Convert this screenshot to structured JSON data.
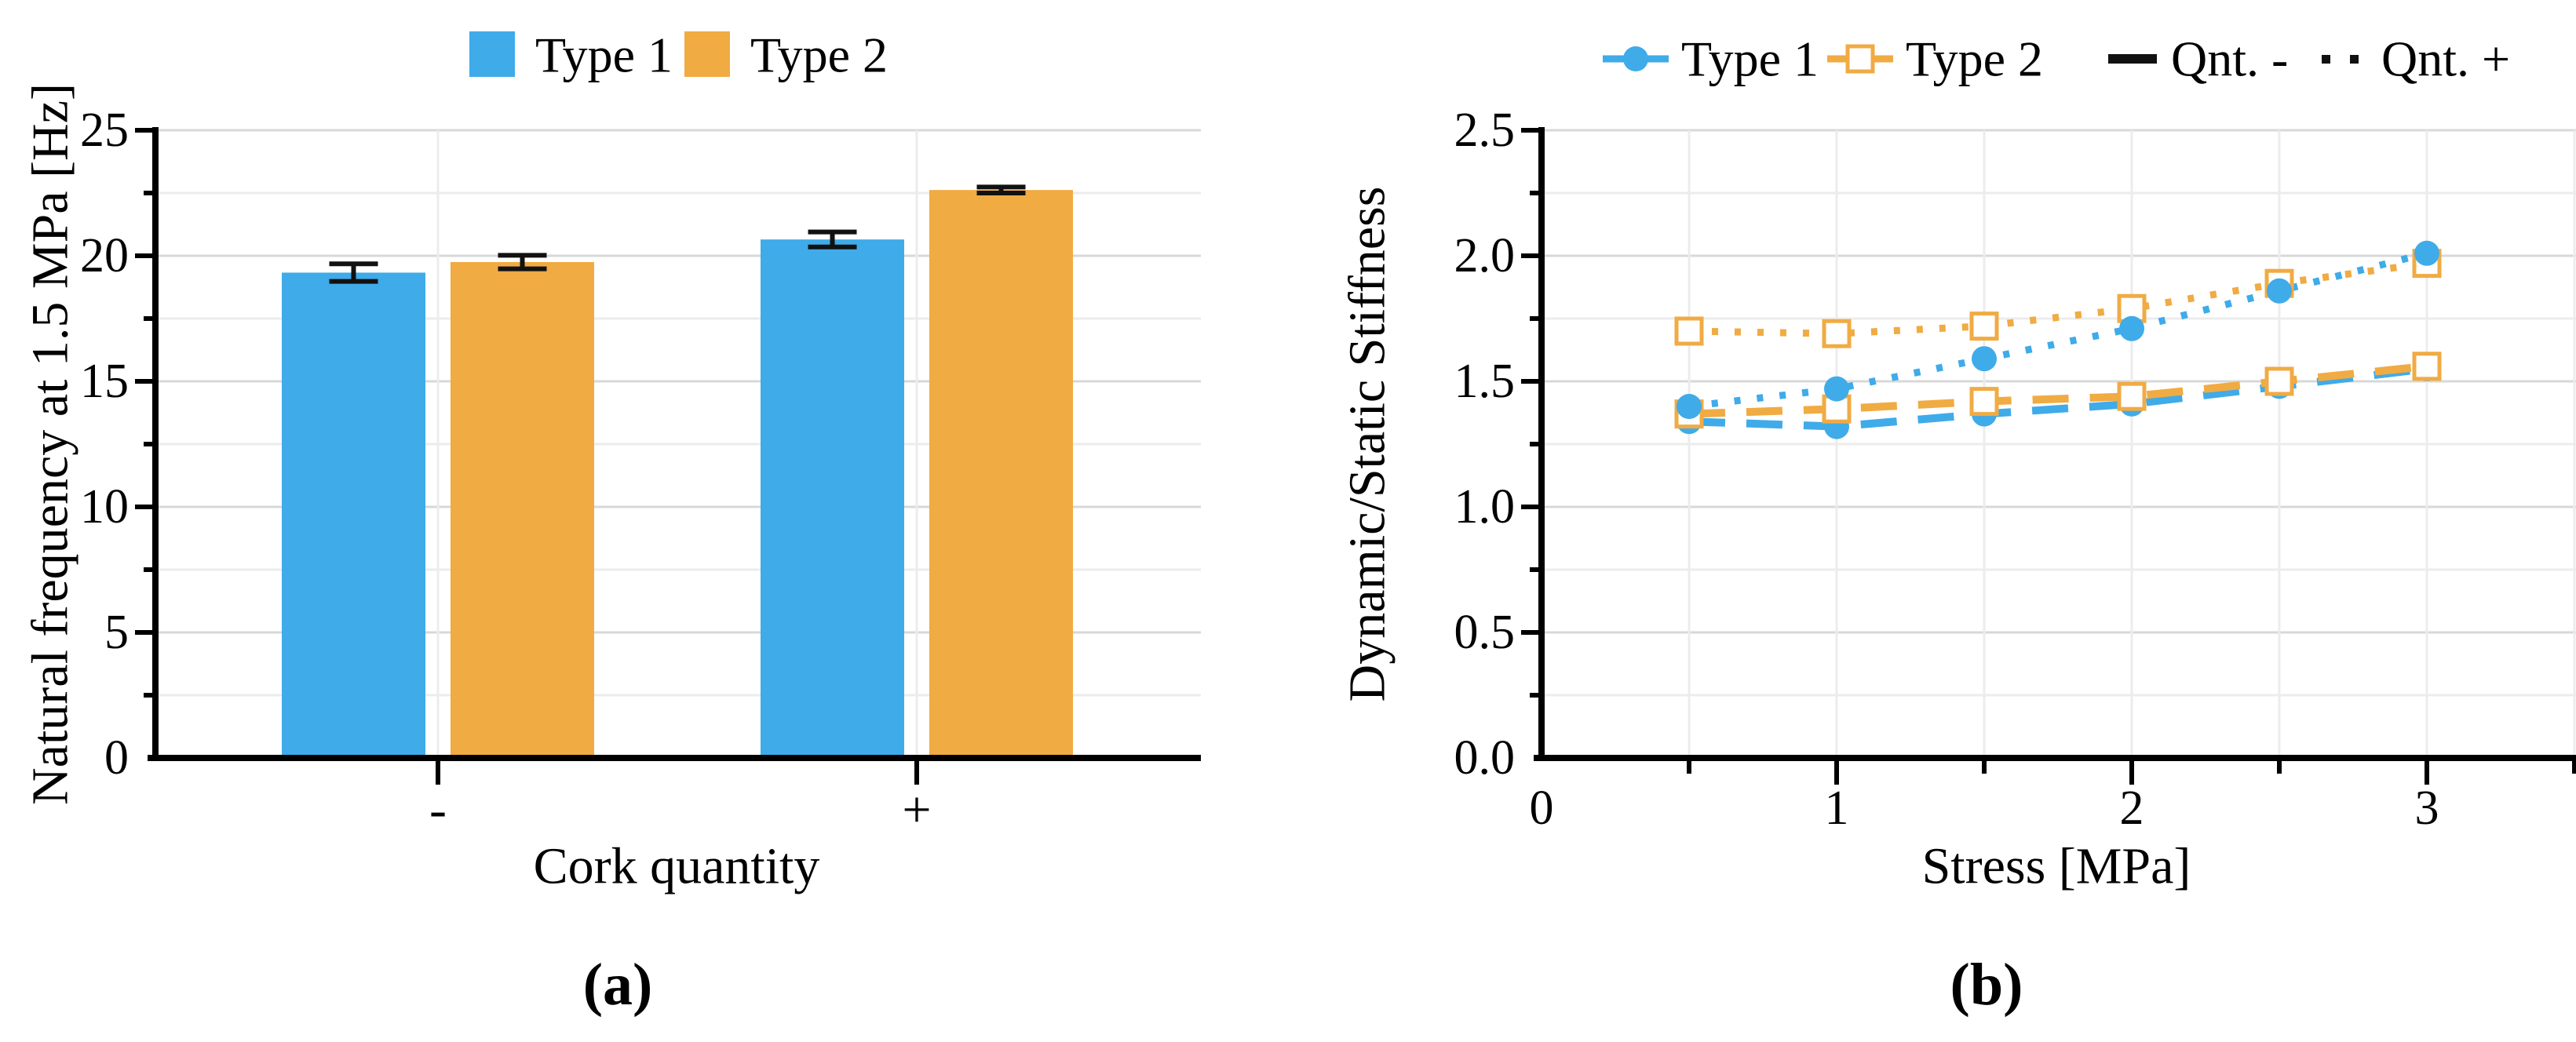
{
  "figure": {
    "description": "Two-panel figure: (a) grouped bar chart of natural frequency vs cork quantity, (b) line chart of dynamic/static stiffness vs stress",
    "background": "#ffffff"
  },
  "colors": {
    "type1": "#3FABE9",
    "type2": "#F0AB43",
    "black": "#111111",
    "axis": "#000000",
    "error_bar": "#111111",
    "grid_major": "#d8d8d8",
    "grid_minor": "#ececec",
    "marker_fill_open": "#ffffff"
  },
  "chart_data": [
    {
      "id": "bar-chart-a",
      "type": "bar",
      "caption": "(a)",
      "xlabel": "Cork quantity",
      "ylabel": "Natural frequency at 1.5 MPa [Hz]",
      "categories": [
        "-",
        "+"
      ],
      "yticks": [
        0,
        5,
        10,
        15,
        20,
        25
      ],
      "ylim": [
        0,
        25
      ],
      "grid_step": 2.5,
      "legend_position": "top-center",
      "legend": [
        {
          "label": "Type 1",
          "color_key": "type1"
        },
        {
          "label": "Type 2",
          "color_key": "type2"
        }
      ],
      "series": [
        {
          "name": "Type 1",
          "color_key": "type1",
          "values": [
            19.33,
            20.65
          ],
          "errors": [
            0.35,
            0.3
          ]
        },
        {
          "name": "Type 2",
          "color_key": "type2",
          "values": [
            19.75,
            22.62
          ],
          "errors": [
            0.27,
            0.12
          ]
        }
      ]
    },
    {
      "id": "line-chart-b",
      "type": "line",
      "caption": "(b)",
      "xlabel": "Stress [MPa]",
      "ylabel": "Dynamic/Static Stiffness",
      "x": [
        0.5,
        1,
        1.5,
        2,
        2.5,
        3
      ],
      "xticks": [
        0,
        1,
        2,
        3
      ],
      "xlim": [
        0,
        3.5
      ],
      "yticks": [
        "0.0",
        "0.5",
        "1.0",
        "1.5",
        "2.0",
        "2.5"
      ],
      "ylim": [
        0,
        2.5
      ],
      "grid_step_x": 0.5,
      "grid_step_y": 0.25,
      "legend_position": "top-center",
      "legend": [
        {
          "label": "Type 1",
          "symbol": "circle-line",
          "color_key": "type1"
        },
        {
          "label": "Type 2",
          "symbol": "square-line",
          "color_key": "type2"
        },
        {
          "label": "Qnt. -",
          "symbol": "dash",
          "color_key": "black"
        },
        {
          "label": "Qnt. +",
          "symbol": "dots",
          "color_key": "black"
        }
      ],
      "series": [
        {
          "name": "Type 1 Qnt. -",
          "color_key": "type1",
          "marker": "circle",
          "line_style": "dashed",
          "values": [
            1.34,
            1.32,
            1.37,
            1.41,
            1.48,
            1.55
          ]
        },
        {
          "name": "Type 2 Qnt. -",
          "color_key": "type2",
          "marker": "square",
          "line_style": "dashed",
          "values": [
            1.37,
            1.39,
            1.42,
            1.44,
            1.5,
            1.56
          ]
        },
        {
          "name": "Type 2 Qnt. +",
          "color_key": "type2",
          "marker": "square",
          "line_style": "dotted",
          "values": [
            1.7,
            1.69,
            1.72,
            1.79,
            1.89,
            1.97
          ]
        },
        {
          "name": "Type 1 Qnt. +",
          "color_key": "type1",
          "marker": "circle",
          "line_style": "dotted",
          "values": [
            1.4,
            1.47,
            1.59,
            1.71,
            1.86,
            2.01
          ]
        }
      ]
    }
  ]
}
